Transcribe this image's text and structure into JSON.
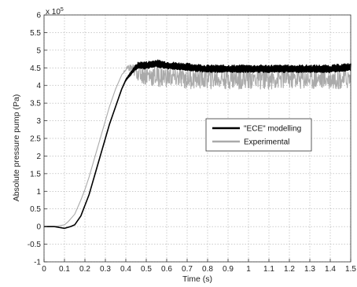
{
  "chart_data": {
    "type": "line",
    "title": "",
    "xlabel": "Time (s)",
    "ylabel": "Absolute pressure pump (Pa)",
    "y_multiplier_label": "x 10",
    "y_multiplier_exponent": "5",
    "xlim": [
      0,
      1.5
    ],
    "ylim": [
      -1,
      6
    ],
    "grid": true,
    "legend_position": "center-right",
    "x_ticks": [
      "0",
      "0.1",
      "0.2",
      "0.3",
      "0.4",
      "0.5",
      "0.6",
      "0.7",
      "0.8",
      "0.9",
      "1",
      "1.1",
      "1.2",
      "1.3",
      "1.4",
      "1.5"
    ],
    "y_ticks": [
      "-1",
      "-0.5",
      "0",
      "0.5",
      "1",
      "1.5",
      "2",
      "2.5",
      "3",
      "3.5",
      "4",
      "4.5",
      "5",
      "5.5",
      "6"
    ],
    "series": [
      {
        "name": "\"ECE\" modelling",
        "color": "#000000",
        "x": [
          0,
          0.05,
          0.1,
          0.13,
          0.15,
          0.18,
          0.2,
          0.22,
          0.25,
          0.28,
          0.3,
          0.32,
          0.35,
          0.38,
          0.4,
          0.42,
          0.44,
          0.46,
          0.5,
          0.55,
          0.6,
          0.7,
          0.8,
          0.9,
          1.0,
          1.1,
          1.2,
          1.3,
          1.4,
          1.5
        ],
        "values": [
          0,
          0,
          -0.05,
          0,
          0.05,
          0.3,
          0.6,
          0.9,
          1.5,
          2.1,
          2.5,
          2.9,
          3.4,
          3.9,
          4.15,
          4.3,
          4.45,
          4.55,
          4.55,
          4.6,
          4.55,
          4.5,
          4.45,
          4.45,
          4.45,
          4.45,
          4.45,
          4.45,
          4.45,
          4.5
        ],
        "oscillation_amplitude": 0.13
      },
      {
        "name": "Experimental",
        "color": "#aaaaaa",
        "x": [
          0,
          0.05,
          0.1,
          0.12,
          0.15,
          0.18,
          0.2,
          0.22,
          0.25,
          0.28,
          0.3,
          0.32,
          0.35,
          0.38,
          0.4,
          0.42,
          0.45,
          0.5,
          0.55,
          0.6,
          0.7,
          0.8,
          0.9,
          1.0,
          1.1,
          1.2,
          1.3,
          1.4,
          1.5
        ],
        "values": [
          0,
          0,
          0.05,
          0.15,
          0.35,
          0.75,
          1.05,
          1.4,
          2.0,
          2.6,
          3.0,
          3.4,
          3.9,
          4.3,
          4.45,
          4.5,
          4.4,
          4.3,
          4.25,
          4.25,
          4.2,
          4.2,
          4.2,
          4.2,
          4.2,
          4.2,
          4.2,
          4.2,
          4.2
        ],
        "oscillation_amplitude": 0.3
      }
    ]
  }
}
